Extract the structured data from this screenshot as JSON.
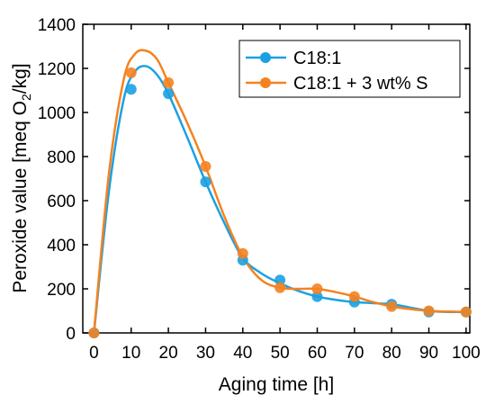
{
  "chart_data": {
    "type": "line",
    "xlabel": "Aging time [h]",
    "ylabel": {
      "prefix": "Peroxide value [meq O",
      "subscript": "2",
      "suffix": "/kg]"
    },
    "xlim": [
      -3,
      101
    ],
    "ylim": [
      0,
      1400
    ],
    "x_ticks": [
      0,
      10,
      20,
      30,
      40,
      50,
      60,
      70,
      80,
      90,
      100
    ],
    "y_ticks": [
      0,
      200,
      400,
      600,
      800,
      1000,
      1200,
      1400
    ],
    "x_tick_labels": [
      "0",
      "10",
      "20",
      "30",
      "40",
      "50",
      "60",
      "70",
      "80",
      "90",
      "100"
    ],
    "y_tick_labels": [
      "0",
      "200",
      "400",
      "600",
      "800",
      "1000",
      "1200",
      "1400"
    ],
    "grid": false,
    "legend_position": "top-right",
    "series": [
      {
        "name": "C18:1",
        "color": "#1ba1e2",
        "x": [
          0,
          10,
          20,
          30,
          40,
          50,
          60,
          70,
          80,
          90,
          100
        ],
        "y": [
          0,
          1105,
          1085,
          685,
          330,
          240,
          165,
          140,
          130,
          95,
          95
        ],
        "curve_x": [
          0,
          4,
          8,
          11,
          14,
          17,
          20,
          25,
          30,
          35,
          40,
          45,
          50,
          55,
          60,
          65,
          70,
          75,
          80,
          85,
          90,
          95,
          100
        ],
        "curve_y": [
          0,
          640,
          1060,
          1185,
          1210,
          1170,
          1085,
          890,
          685,
          500,
          340,
          270,
          225,
          190,
          165,
          150,
          140,
          135,
          130,
          115,
          100,
          95,
          95
        ]
      },
      {
        "name": "C18:1 + 3 wt% S",
        "color": "#f58220",
        "x": [
          0,
          10,
          20,
          30,
          40,
          50,
          60,
          70,
          80,
          90,
          100
        ],
        "y": [
          0,
          1180,
          1135,
          755,
          360,
          205,
          200,
          165,
          120,
          100,
          95
        ],
        "curve_x": [
          0,
          4,
          8,
          11,
          14,
          17,
          20,
          25,
          30,
          35,
          40,
          45,
          50,
          55,
          60,
          65,
          70,
          75,
          80,
          85,
          90,
          95,
          100
        ],
        "curve_y": [
          0,
          720,
          1150,
          1265,
          1280,
          1240,
          1135,
          955,
          755,
          530,
          345,
          240,
          205,
          200,
          200,
          185,
          165,
          140,
          120,
          108,
          100,
          97,
          95
        ]
      }
    ]
  }
}
